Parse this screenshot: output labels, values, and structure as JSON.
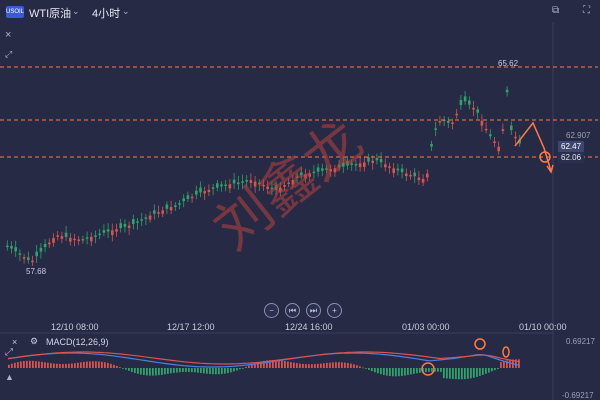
{
  "header": {
    "symbol_badge": "USOIL",
    "symbol_name": "WTI原油",
    "interval": "4小时",
    "chevron": "⌄"
  },
  "icons": {
    "close": "×",
    "expand": "⤢",
    "window": "⧉",
    "fullscreen": "⛶",
    "settings": "⚙",
    "measure": "▲",
    "zoom_out": "−",
    "first": "⏮",
    "last": "⏭",
    "zoom_in": "+"
  },
  "watermark": "刘鑫龙",
  "price_labels": {
    "high": "65.62",
    "low": "57.68",
    "level_62907": "62.907",
    "current": "62.47",
    "level_62_06": "62.06"
  },
  "time_axis": [
    "12/10 08:00",
    "12/17 12:00",
    "12/24 16:00",
    "01/03 00:00",
    "01/10 00:00"
  ],
  "macd": {
    "label": "MACD(12,26,9)",
    "value_top": "0.69217",
    "value_bottom": "-0.69217"
  },
  "colors": {
    "background": "#262a45",
    "up_candle": "#d9534f",
    "down_candle": "#2ea36b",
    "dashed_level": "#ff7a45",
    "macd_line": "#4a7fe8",
    "signal_line": "#d9534f",
    "annotation": "#ff7a45",
    "current_price_tag": "#3c4670"
  }
}
